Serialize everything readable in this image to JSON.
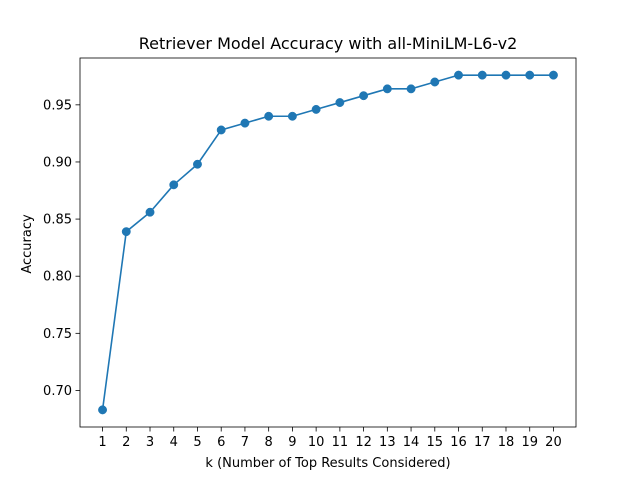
{
  "chart_data": {
    "type": "line",
    "title": "Retriever Model Accuracy with all-MiniLM-L6-v2",
    "xlabel": "k (Number of Top Results Considered)",
    "ylabel": "Accuracy",
    "x": [
      1,
      2,
      3,
      4,
      5,
      6,
      7,
      8,
      9,
      10,
      11,
      12,
      13,
      14,
      15,
      16,
      17,
      18,
      19,
      20
    ],
    "series": [
      {
        "values": [
          0.683,
          0.839,
          0.856,
          0.88,
          0.898,
          0.928,
          0.934,
          0.94,
          0.94,
          0.946,
          0.952,
          0.958,
          0.964,
          0.964,
          0.97,
          0.976,
          0.976,
          0.976,
          0.976,
          0.976
        ],
        "color": "#1f77b4",
        "marker": "circle"
      }
    ],
    "xticks": [
      "1",
      "2",
      "3",
      "4",
      "5",
      "6",
      "7",
      "8",
      "9",
      "10",
      "11",
      "12",
      "13",
      "14",
      "15",
      "16",
      "17",
      "18",
      "19",
      "20"
    ],
    "yticks": [
      "0.70",
      "0.75",
      "0.80",
      "0.85",
      "0.90",
      "0.95"
    ],
    "ylim": [
      0.668,
      0.991
    ],
    "xlim": [
      0.05,
      20.95
    ],
    "grid": false,
    "legend": false
  }
}
